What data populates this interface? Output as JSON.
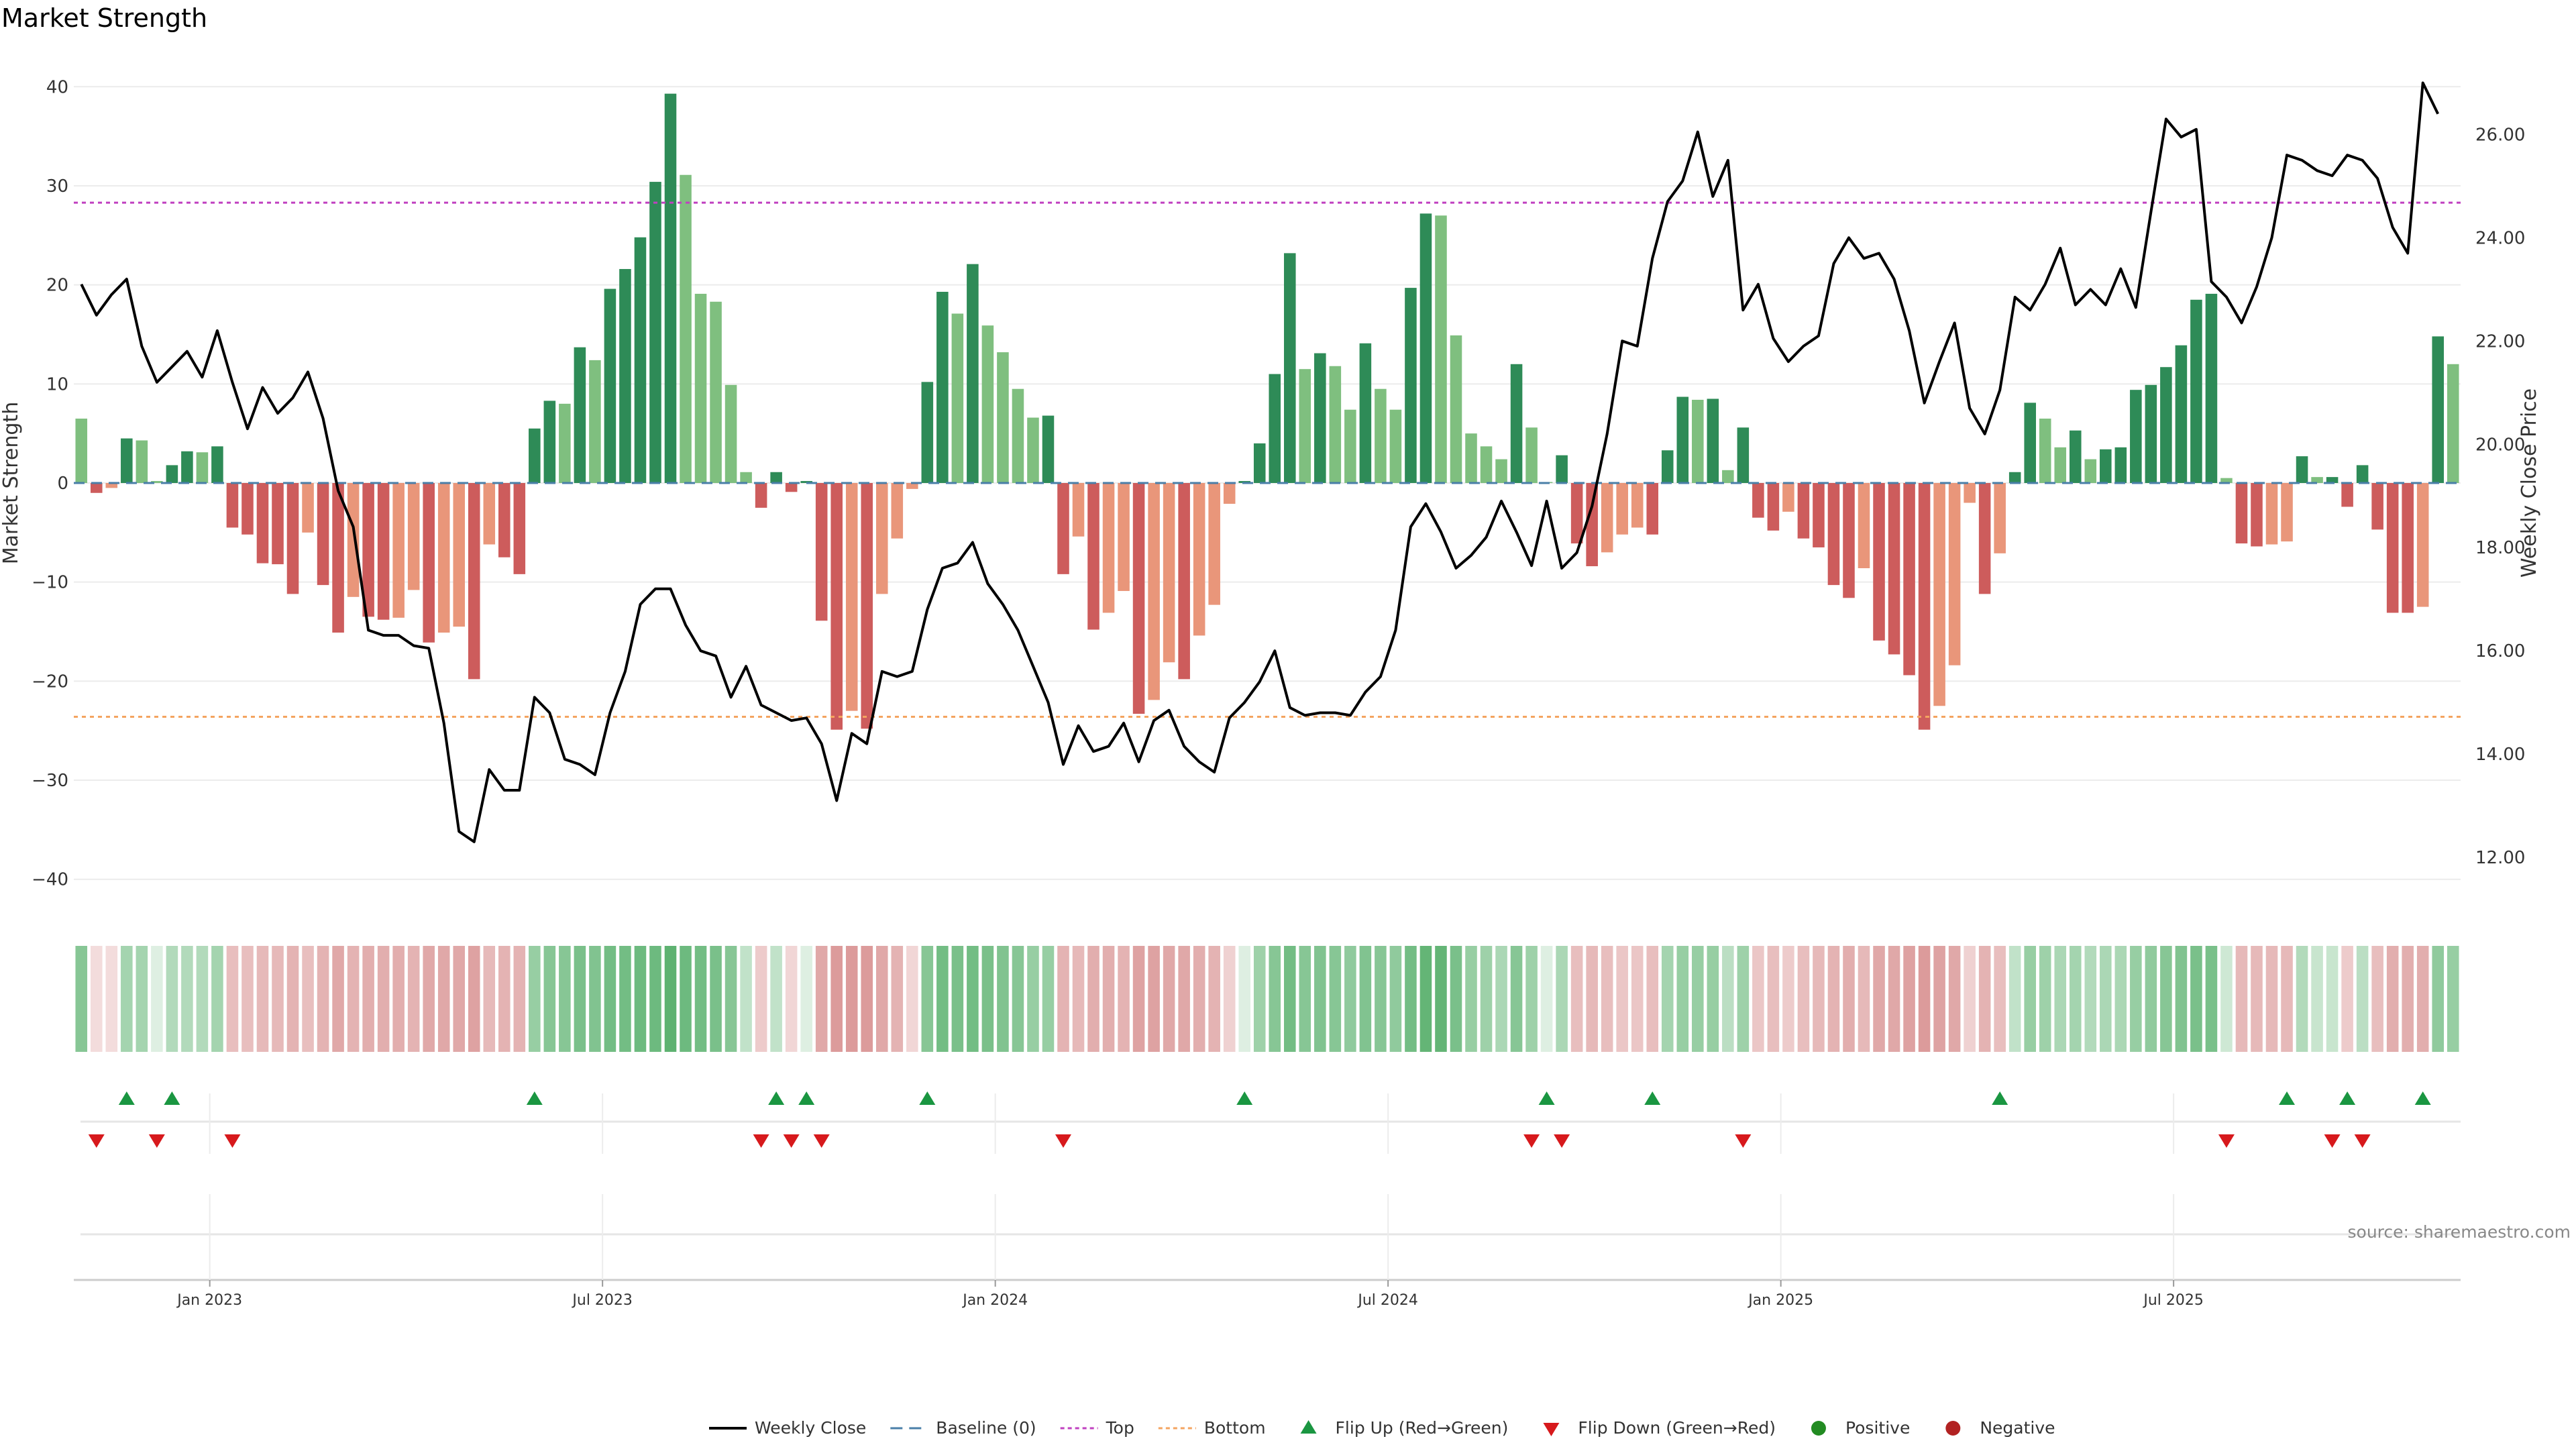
{
  "chart_data": {
    "type": "bar",
    "title": "Market Strength",
    "ylabel": "Market Strength",
    "y2label": "Weekly Close Price",
    "ylim": [
      -43,
      43
    ],
    "y2lim": [
      11.0,
      27.5
    ],
    "y_ticks": [
      40,
      30,
      20,
      10,
      0,
      -10,
      -20,
      -30,
      -40
    ],
    "y2_ticks": [
      "26.00",
      "24.00",
      "22.00",
      "20.00",
      "18.00",
      "16.00",
      "14.00",
      "12.00"
    ],
    "x_tick_labels": [
      "Jan 2023",
      "Jul 2023",
      "Jan 2024",
      "Jul 2024",
      "Jan 2025",
      "Jul 2025"
    ],
    "x_tick_positions": [
      8.5,
      34.5,
      60.5,
      86.5,
      112.5,
      138.5
    ],
    "top_threshold": 28.3,
    "bottom_threshold": -23.6,
    "strength": [
      6.5,
      -1,
      -0.5,
      4.5,
      4.3,
      0.2,
      1.8,
      3.2,
      3.1,
      3.7,
      -4.5,
      -5.2,
      -8.1,
      -8.2,
      -11.2,
      -5,
      -10.3,
      -15.1,
      -11.5,
      -13.5,
      -13.8,
      -13.6,
      -10.8,
      -16.1,
      -15.1,
      -14.5,
      -19.8,
      -6.2,
      -7.5,
      -9.2,
      5.5,
      8.3,
      8,
      13.7,
      12.4,
      19.6,
      21.6,
      24.8,
      30.4,
      39.3,
      31.1,
      19.1,
      18.3,
      9.9,
      1.1,
      -2.5,
      1.1,
      -0.9,
      0.2,
      -13.9,
      -24.9,
      -23,
      -24.8,
      -11.2,
      -5.6,
      -0.6,
      10.2,
      19.3,
      17.1,
      22.1,
      15.9,
      13.2,
      9.5,
      6.6,
      6.8,
      -9.2,
      -5.4,
      -14.8,
      -13.1,
      -10.9,
      -23.3,
      -21.9,
      -18.1,
      -19.8,
      -15.4,
      -12.3,
      -2.1,
      0.2,
      4,
      11,
      23.2,
      11.5,
      13.1,
      11.8,
      7.4,
      14.1,
      9.5,
      7.4,
      19.7,
      27.2,
      27,
      14.9,
      5,
      3.7,
      2.4,
      12,
      5.6,
      0.1,
      2.8,
      -6.1,
      -8.4,
      -7,
      -5.2,
      -4.5,
      -5.2,
      3.3,
      8.7,
      8.4,
      8.5,
      1.3,
      5.6,
      -3.5,
      -4.8,
      -2.9,
      -5.6,
      -6.5,
      -10.3,
      -11.6,
      -8.6,
      -15.9,
      -17.3,
      -19.4,
      -24.9,
      -22.5,
      -18.4,
      -2,
      -11.2,
      -7.1,
      1.1,
      8.1,
      6.5,
      3.6,
      5.3,
      2.4,
      3.4,
      3.6,
      9.4,
      9.9,
      11.7,
      13.9,
      18.5,
      19.1,
      0.5,
      -6.1,
      -6.4,
      -6.2,
      -5.9,
      2.7,
      0.6,
      0.6,
      -2.4,
      1.8,
      -4.7,
      -13.1,
      -13.1,
      -12.5,
      14.8,
      12
    ],
    "weekly_close": [
      23.1,
      22.5,
      22.9,
      23.2,
      21.9,
      21.2,
      21.5,
      21.8,
      21.3,
      22.2,
      21.2,
      20.3,
      21.1,
      20.6,
      20.9,
      21.4,
      20.5,
      19.1,
      18.4,
      16.4,
      16.3,
      16.3,
      16.1,
      16.05,
      14.6,
      12.5,
      12.3,
      13.7,
      13.3,
      13.3,
      15.1,
      14.8,
      13.9,
      13.8,
      13.6,
      14.8,
      15.6,
      16.9,
      17.2,
      17.2,
      16.5,
      16,
      15.9,
      15.1,
      15.7,
      14.95,
      14.8,
      14.65,
      14.7,
      14.2,
      13.1,
      14.4,
      14.2,
      15.6,
      15.5,
      15.6,
      16.8,
      17.6,
      17.7,
      18.1,
      17.3,
      16.9,
      16.4,
      15.7,
      15,
      13.8,
      14.55,
      14.05,
      14.15,
      14.6,
      13.85,
      14.65,
      14.85,
      14.15,
      13.85,
      13.65,
      14.7,
      15,
      15.4,
      16,
      14.9,
      14.75,
      14.8,
      14.8,
      14.75,
      15.2,
      15.5,
      16.4,
      18.4,
      18.85,
      18.3,
      17.6,
      17.85,
      18.2,
      18.9,
      18.3,
      17.65,
      18.9,
      17.6,
      17.9,
      18.8,
      20.2,
      22,
      21.9,
      23.6,
      24.7,
      25.1,
      26.05,
      24.8,
      25.5,
      22.6,
      23.1,
      22.05,
      21.6,
      21.9,
      22.1,
      23.5,
      24,
      23.6,
      23.7,
      23.2,
      22.2,
      20.8,
      21.6,
      22.35,
      20.7,
      20.2,
      21.05,
      22.85,
      22.6,
      23.1,
      23.8,
      22.7,
      23,
      22.7,
      23.4,
      22.65,
      24.5,
      26.3,
      25.95,
      26.1,
      23.15,
      22.85,
      22.35,
      23.05,
      24,
      25.6,
      25.5,
      25.3,
      25.2,
      25.6,
      25.5,
      25.15,
      24.2,
      23.7,
      27,
      26.4
    ],
    "heat_strip": [
      0.7,
      -0.15,
      -0.15,
      0.5,
      0.5,
      0.1,
      0.4,
      0.4,
      0.4,
      0.5,
      -0.4,
      -0.4,
      -0.45,
      -0.45,
      -0.5,
      -0.4,
      -0.5,
      -0.6,
      -0.5,
      -0.55,
      -0.55,
      -0.55,
      -0.5,
      -0.6,
      -0.6,
      -0.6,
      -0.65,
      -0.45,
      -0.5,
      -0.5,
      0.6,
      0.7,
      0.7,
      0.8,
      0.75,
      0.85,
      0.85,
      0.9,
      0.9,
      1,
      0.9,
      0.85,
      0.8,
      0.7,
      0.3,
      -0.3,
      0.3,
      -0.2,
      0.1,
      -0.6,
      -0.7,
      -0.7,
      -0.7,
      -0.6,
      -0.5,
      -0.2,
      0.7,
      0.85,
      0.8,
      0.85,
      0.8,
      0.75,
      0.7,
      0.6,
      0.6,
      -0.5,
      -0.45,
      -0.55,
      -0.55,
      -0.5,
      -0.65,
      -0.65,
      -0.6,
      -0.6,
      -0.55,
      -0.5,
      -0.25,
      0.1,
      0.55,
      0.7,
      0.85,
      0.7,
      0.75,
      0.7,
      0.65,
      0.75,
      0.7,
      0.65,
      0.85,
      0.95,
      0.95,
      0.8,
      0.6,
      0.55,
      0.45,
      0.7,
      0.55,
      0.1,
      0.45,
      -0.4,
      -0.45,
      -0.4,
      -0.35,
      -0.35,
      -0.4,
      0.5,
      0.6,
      0.6,
      0.6,
      0.35,
      0.55,
      -0.35,
      -0.4,
      -0.3,
      -0.4,
      -0.45,
      -0.5,
      -0.55,
      -0.45,
      -0.6,
      -0.6,
      -0.65,
      -0.7,
      -0.65,
      -0.6,
      -0.25,
      -0.5,
      -0.4,
      0.3,
      0.6,
      0.55,
      0.45,
      0.5,
      0.4,
      0.45,
      0.45,
      0.6,
      0.65,
      0.7,
      0.75,
      0.8,
      0.8,
      0.2,
      -0.45,
      -0.45,
      -0.45,
      -0.45,
      0.4,
      0.25,
      0.25,
      -0.3,
      0.35,
      -0.4,
      -0.55,
      -0.55,
      -0.55,
      0.65,
      0.6
    ],
    "flip_up_weeks": [
      3,
      6,
      30,
      46,
      48,
      56,
      77,
      97,
      104,
      127,
      146,
      150,
      155
    ],
    "flip_down_weeks": [
      1,
      5,
      10,
      45,
      47,
      49,
      65,
      96,
      98,
      110,
      142,
      149,
      151
    ],
    "colors": {
      "positive_dark": "#2e8b57",
      "positive_light": "#7fbf7f",
      "negative_dark": "#cd5c5c",
      "negative_light": "#e9967a",
      "line": "#000000",
      "baseline": "#4a7fa8",
      "top": "#c040c0",
      "bottom": "#f4a460",
      "flip_up": "#1a9641",
      "flip_down": "#d7191c",
      "positive_dot": "#228b22",
      "negative_dot": "#b22222"
    },
    "legend": [
      {
        "key": "weekly-close",
        "label": "Weekly Close"
      },
      {
        "key": "baseline",
        "label": "Baseline (0)"
      },
      {
        "key": "top",
        "label": "Top"
      },
      {
        "key": "bottom",
        "label": "Bottom"
      },
      {
        "key": "flip-up",
        "label": "Flip Up (Red→Green)"
      },
      {
        "key": "flip-down",
        "label": "Flip Down (Green→Red)"
      },
      {
        "key": "positive",
        "label": "Positive"
      },
      {
        "key": "negative",
        "label": "Negative"
      }
    ],
    "source": "source: sharemaestro.com"
  }
}
